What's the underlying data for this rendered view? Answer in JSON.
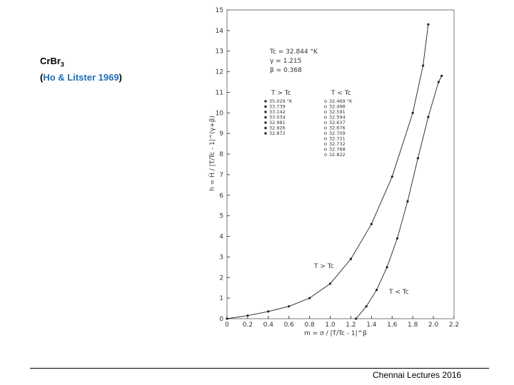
{
  "slide": {
    "compound": {
      "base": "CrBr",
      "subscript": "3"
    },
    "citation": {
      "open": "(",
      "text": "Ho & Litster 1969",
      "close": ")"
    },
    "footer": "Chennai Lectures 2016"
  },
  "chart_data": {
    "type": "line",
    "x_label": "m = σ / |T/Tc - 1|^β",
    "y_label": "h = Ĥ / |T/Tc - 1|^(γ+β)",
    "annotations": [
      "Tc = 32.844 °K",
      "γ = 1.215",
      "β = 0.368"
    ],
    "curve_labels": [
      "T > Tc",
      "T < Tc"
    ],
    "legend_groups": [
      {
        "title": "T > Tc",
        "entries": [
          "35.029 °K",
          "33.739",
          "33.142",
          "33.034",
          "32.981",
          "32.926",
          "32.872"
        ]
      },
      {
        "title": "T < Tc",
        "entries": [
          "32.469 °K",
          "32.498",
          "32.591",
          "32.594",
          "32.637",
          "32.676",
          "32.709",
          "32.721",
          "32.732",
          "32.768",
          "32.822"
        ]
      }
    ],
    "xlim": [
      0,
      2.2
    ],
    "xticks": [
      0,
      0.2,
      0.4,
      0.6,
      0.8,
      {
        "value": 1,
        "label": "1.0"
      },
      1.2,
      1.4,
      1.6,
      1.8,
      {
        "value": 2,
        "label": "2.0"
      },
      2.2
    ],
    "ylim": [
      0,
      15
    ],
    "yticks": [
      0,
      1,
      2,
      3,
      4,
      5,
      6,
      7,
      8,
      9,
      10,
      11,
      12,
      13,
      14,
      15
    ],
    "series": [
      {
        "name": "T > Tc",
        "color": "#222222",
        "x": [
          0,
          0.2,
          0.4,
          0.6,
          0.8,
          1.0,
          1.2,
          1.4,
          1.6,
          1.8,
          1.9,
          1.95
        ],
        "values": [
          0,
          0.15,
          0.35,
          0.6,
          1.0,
          1.7,
          2.9,
          4.6,
          6.9,
          10.0,
          12.3,
          14.3
        ]
      },
      {
        "name": "T < Tc",
        "color": "#222222",
        "x": [
          1.25,
          1.35,
          1.45,
          1.55,
          1.65,
          1.75,
          1.85,
          1.95,
          2.05,
          2.08
        ],
        "values": [
          0,
          0.6,
          1.4,
          2.5,
          3.9,
          5.7,
          7.8,
          9.8,
          11.5,
          11.8
        ]
      }
    ]
  }
}
